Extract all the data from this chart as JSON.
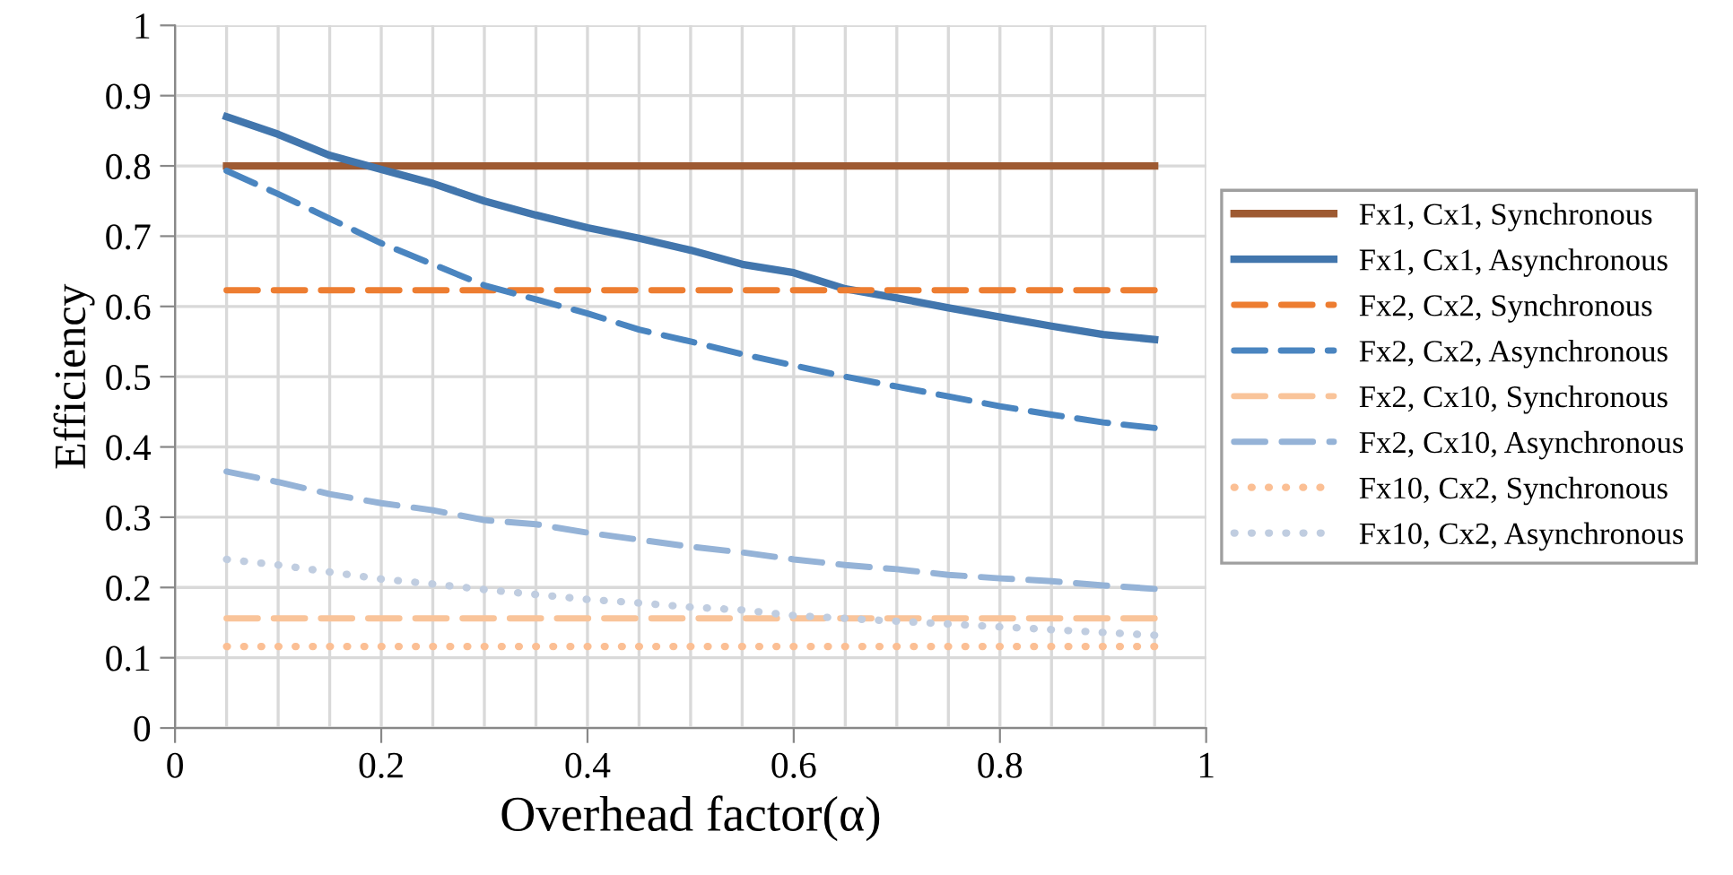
{
  "chart_data": {
    "type": "line",
    "xlabel": "Overhead factor(α)",
    "ylabel": "Efficiency",
    "x": [
      0.05,
      0.1,
      0.15,
      0.2,
      0.25,
      0.3,
      0.35,
      0.4,
      0.45,
      0.5,
      0.55,
      0.6,
      0.65,
      0.7,
      0.75,
      0.8,
      0.85,
      0.9,
      0.95
    ],
    "series": [
      {
        "name": "Fx1, Cx1, Synchronous",
        "color": "#9e5a32",
        "line_style": "solid",
        "values": [
          0.8,
          0.8,
          0.8,
          0.8,
          0.8,
          0.8,
          0.8,
          0.8,
          0.8,
          0.8,
          0.8,
          0.8,
          0.8,
          0.8,
          0.8,
          0.8,
          0.8,
          0.8,
          0.8
        ]
      },
      {
        "name": "Fx1, Cx1, Asynchronous",
        "color": "#4276ad",
        "line_style": "solid",
        "values": [
          0.87,
          0.845,
          0.815,
          0.795,
          0.775,
          0.75,
          0.73,
          0.712,
          0.697,
          0.68,
          0.66,
          0.648,
          0.625,
          0.612,
          0.598,
          0.585,
          0.572,
          0.56,
          0.553
        ]
      },
      {
        "name": "Fx2, Cx2, Synchronous",
        "color": "#ed7d31",
        "line_style": "dashed",
        "values": [
          0.623,
          0.623,
          0.623,
          0.623,
          0.623,
          0.623,
          0.623,
          0.623,
          0.623,
          0.623,
          0.623,
          0.623,
          0.623,
          0.623,
          0.623,
          0.623,
          0.623,
          0.623,
          0.623
        ]
      },
      {
        "name": "Fx2, Cx2, Asynchronous",
        "color": "#4a85c0",
        "line_style": "dashed",
        "values": [
          0.793,
          0.76,
          0.725,
          0.69,
          0.66,
          0.63,
          0.61,
          0.59,
          0.567,
          0.55,
          0.532,
          0.516,
          0.5,
          0.486,
          0.472,
          0.458,
          0.446,
          0.435,
          0.427
        ]
      },
      {
        "name": "Fx2, Cx10, Synchronous",
        "color": "#f9c49a",
        "line_style": "dashed",
        "values": [
          0.156,
          0.156,
          0.156,
          0.156,
          0.156,
          0.156,
          0.156,
          0.156,
          0.156,
          0.156,
          0.156,
          0.156,
          0.156,
          0.156,
          0.156,
          0.156,
          0.156,
          0.156,
          0.156
        ]
      },
      {
        "name": "Fx2, Cx10, Asynchronous",
        "color": "#95b3d7",
        "line_style": "dashed",
        "values": [
          0.365,
          0.35,
          0.333,
          0.32,
          0.31,
          0.296,
          0.29,
          0.278,
          0.268,
          0.258,
          0.25,
          0.24,
          0.232,
          0.226,
          0.218,
          0.213,
          0.209,
          0.203,
          0.198
        ]
      },
      {
        "name": "Fx10, Cx2, Synchronous",
        "color": "#fbbf94",
        "line_style": "dotted",
        "values": [
          0.116,
          0.116,
          0.116,
          0.116,
          0.116,
          0.116,
          0.116,
          0.116,
          0.116,
          0.116,
          0.116,
          0.116,
          0.116,
          0.116,
          0.116,
          0.116,
          0.116,
          0.116,
          0.116
        ]
      },
      {
        "name": "Fx10, Cx2, Asynchronous",
        "color": "#c0cde0",
        "line_style": "dotted",
        "values": [
          0.24,
          0.232,
          0.222,
          0.212,
          0.205,
          0.197,
          0.19,
          0.183,
          0.178,
          0.172,
          0.168,
          0.16,
          0.156,
          0.152,
          0.148,
          0.144,
          0.14,
          0.136,
          0.132
        ]
      }
    ],
    "xlim": [
      0,
      1
    ],
    "ylim": [
      0,
      1
    ],
    "xticks": [
      0,
      {
        "value": 0.05,
        "label": null
      },
      {
        "value": 0.1,
        "label": null
      },
      {
        "value": 0.15,
        "label": null
      },
      0.2,
      {
        "value": 0.25,
        "label": null
      },
      {
        "value": 0.3,
        "label": null
      },
      {
        "value": 0.35,
        "label": null
      },
      0.4,
      {
        "value": 0.45,
        "label": null
      },
      {
        "value": 0.5,
        "label": null
      },
      {
        "value": 0.55,
        "label": null
      },
      0.6,
      {
        "value": 0.65,
        "label": null
      },
      {
        "value": 0.7,
        "label": null
      },
      {
        "value": 0.75,
        "label": null
      },
      0.8,
      {
        "value": 0.85,
        "label": null
      },
      {
        "value": 0.9,
        "label": null
      },
      {
        "value": 0.95,
        "label": null
      },
      1
    ],
    "yticks": [
      0,
      0.1,
      0.2,
      0.3,
      0.4,
      0.5,
      0.6,
      0.7,
      0.8,
      0.9,
      1
    ],
    "grid": true,
    "legend": "right",
    "marker": "none"
  }
}
